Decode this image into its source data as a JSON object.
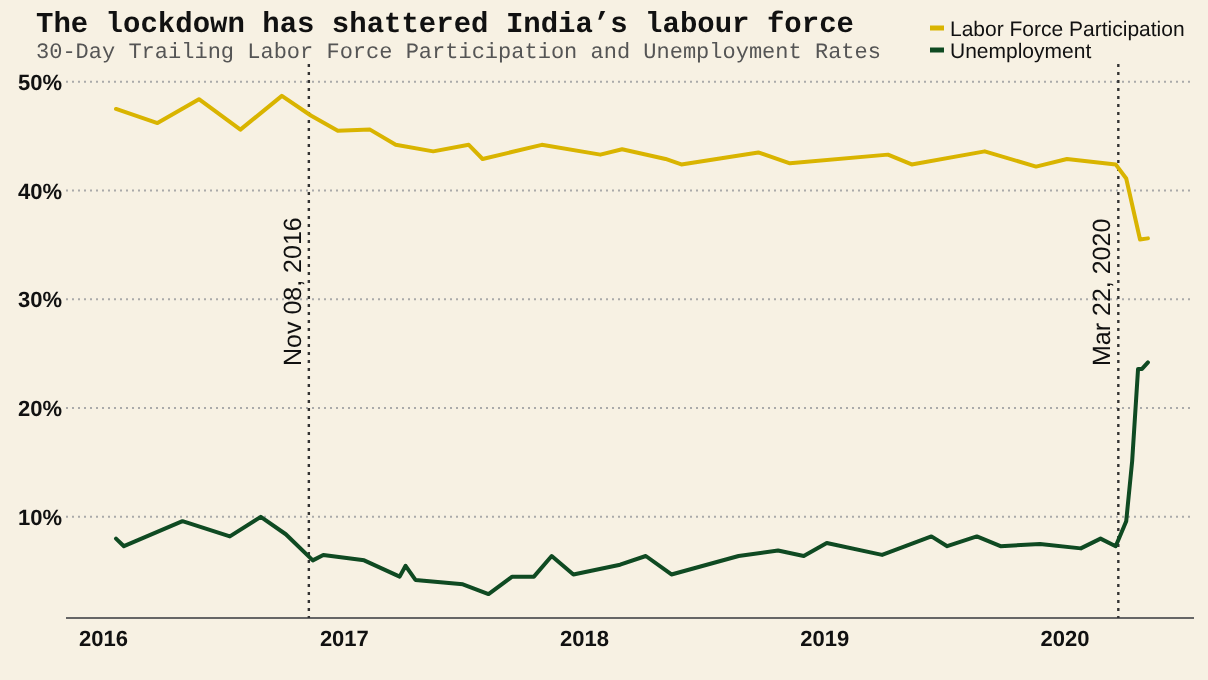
{
  "chart_data": {
    "type": "line",
    "title": "The lockdown has shattered India’s labour force",
    "subtitle": "30-Day Trailing Labor Force Participation and Unemployment Rates",
    "xlim": [
      "2015-11-05",
      "2020-07-15"
    ],
    "xticks": [
      "2016",
      "2017",
      "2018",
      "2019",
      "2020"
    ],
    "ylim": [
      0.7,
      52
    ],
    "yticks": [
      {
        "value": 10,
        "label": "10%"
      },
      {
        "value": 20,
        "label": "20%"
      },
      {
        "value": 30,
        "label": "30%"
      },
      {
        "value": 40,
        "label": "40%"
      },
      {
        "value": 50,
        "label": "50%"
      }
    ],
    "grid": "y",
    "legend": "top right",
    "line_style": "solid",
    "ref_lines": [
      {
        "axis": "x",
        "value": "2016-11-08",
        "label": "Nov 08, 2016",
        "line_style": "dotted",
        "color": "#333333"
      },
      {
        "axis": "x",
        "value": "2020-03-22",
        "label": "Mar 22, 2020",
        "line_style": "dotted",
        "color": "#333333"
      }
    ],
    "series": [
      {
        "name": "Labor Force Participation",
        "color": "#d9b400",
        "x": [
          "2016-01-20",
          "2016-03-23",
          "2016-05-25",
          "2016-07-27",
          "2016-09-28",
          "2016-11-11",
          "2016-12-22",
          "2017-02-09",
          "2017-03-20",
          "2017-05-16",
          "2017-07-09",
          "2017-07-30",
          "2017-10-28",
          "2018-01-25",
          "2018-02-27",
          "2018-05-04",
          "2018-05-28",
          "2018-09-22",
          "2018-11-09",
          "2019-04-07",
          "2019-05-13",
          "2019-09-01",
          "2019-11-18",
          "2020-01-04",
          "2020-03-18",
          "2020-04-03",
          "2020-04-24",
          "2020-05-06"
        ],
        "values": [
          47.5,
          46.2,
          48.4,
          45.6,
          48.7,
          46.9,
          45.5,
          45.6,
          44.2,
          43.6,
          44.2,
          42.9,
          44.2,
          43.3,
          43.8,
          42.9,
          42.4,
          43.5,
          42.5,
          43.3,
          42.4,
          43.6,
          42.2,
          42.9,
          42.4,
          41.1,
          35.5,
          35.6
        ]
      },
      {
        "name": "Unemployment",
        "color": "#0f4a22",
        "x": [
          "2016-01-20",
          "2016-02-01",
          "2016-04-30",
          "2016-07-11",
          "2016-08-27",
          "2016-10-04",
          "2016-11-14",
          "2016-11-30",
          "2017-01-31",
          "2017-03-26",
          "2017-04-04",
          "2017-04-19",
          "2017-06-30",
          "2017-08-08",
          "2017-09-13",
          "2017-10-16",
          "2017-11-12",
          "2017-12-15",
          "2018-02-24",
          "2018-04-04",
          "2018-05-13",
          "2018-08-23",
          "2018-10-22",
          "2018-11-30",
          "2019-01-04",
          "2019-03-29",
          "2019-06-12",
          "2019-07-06",
          "2019-08-20",
          "2019-09-25",
          "2019-11-24",
          "2020-01-25",
          "2020-02-24",
          "2020-03-18",
          "2020-04-03",
          "2020-04-12",
          "2020-04-21",
          "2020-04-27",
          "2020-05-06"
        ],
        "values": [
          8.0,
          7.3,
          9.6,
          8.2,
          10.0,
          8.4,
          6.0,
          6.5,
          6.0,
          4.5,
          5.5,
          4.2,
          3.8,
          2.9,
          4.5,
          4.5,
          6.4,
          4.7,
          5.6,
          6.4,
          4.7,
          6.4,
          6.9,
          6.4,
          7.6,
          6.5,
          8.2,
          7.3,
          8.2,
          7.3,
          7.5,
          7.1,
          8.0,
          7.3,
          9.6,
          15.1,
          23.6,
          23.6,
          24.2
        ]
      }
    ]
  }
}
